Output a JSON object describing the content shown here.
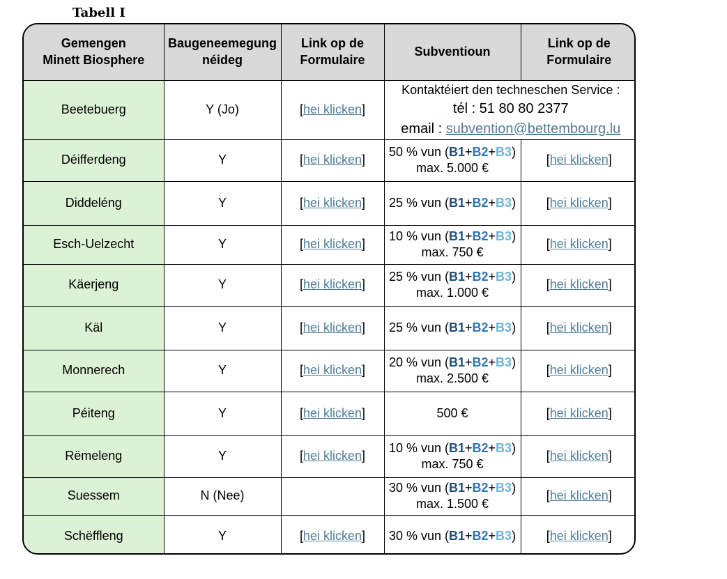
{
  "caption": "Tabell I",
  "headers": {
    "col1": [
      "Gemengen",
      "Minett Biosphere"
    ],
    "col2": [
      "Baugeneemegung",
      "néideg"
    ],
    "col3": [
      "Link op de",
      "Formulaire"
    ],
    "col4": "Subventioun",
    "col5": [
      "Link op de",
      "Formulaire"
    ]
  },
  "link_text": "hei klicken",
  "formula": {
    "b1": "B1",
    "b2": "B2",
    "b3": "B3",
    "plus": "+"
  },
  "colors": {
    "header_bg": "#d9d9d9",
    "commune_bg": "#dcf2d4",
    "link": "#4f7e9a",
    "b1": "#1f4e79",
    "b2": "#2e75b6",
    "b3": "#6cb4d8"
  },
  "contact": {
    "line1": "Kontaktéiert den techneschen Service :",
    "line2": "tél : 51 80 80 2377",
    "line3_prefix": "email : ",
    "email": "subvention@bettembourg.lu"
  },
  "rows": [
    {
      "commune": "Beetebuerg",
      "permit": "Y (Jo)",
      "link1": true,
      "subsidy_type": "contact",
      "link2": false
    },
    {
      "commune": "Déifferdeng",
      "permit": "Y",
      "link1": true,
      "subsidy_type": "formula",
      "pct": "50 % vun (",
      "max": "max. 5.000 €",
      "link2": true
    },
    {
      "commune": "Diddeléng",
      "permit": "Y",
      "link1": true,
      "subsidy_type": "formula",
      "pct": "25 % vun (",
      "max": "",
      "link2": true
    },
    {
      "commune": "Esch-Uelzecht",
      "permit": "Y",
      "link1": true,
      "subsidy_type": "formula",
      "pct": "10 % vun (",
      "max": "max. 750 €",
      "link2": true
    },
    {
      "commune": "Käerjeng",
      "permit": "Y",
      "link1": true,
      "subsidy_type": "formula",
      "pct": "25 % vun (",
      "max": "max. 1.000 €",
      "link2": true
    },
    {
      "commune": "Käl",
      "permit": "Y",
      "link1": true,
      "subsidy_type": "formula",
      "pct": "25 % vun (",
      "max": "",
      "link2": true
    },
    {
      "commune": "Monnerech",
      "permit": "Y",
      "link1": true,
      "subsidy_type": "formula",
      "pct": "20 % vun (",
      "max": "max. 2.500 €",
      "link2": true
    },
    {
      "commune": "Péiteng",
      "permit": "Y",
      "link1": true,
      "subsidy_type": "plain",
      "text": "500 €",
      "link2": true
    },
    {
      "commune": "Rëmeleng",
      "permit": "Y",
      "link1": true,
      "subsidy_type": "formula",
      "pct": "10 % vun (",
      "max": "max. 750 €",
      "link2": true
    },
    {
      "commune": "Suessem",
      "permit": "N (Nee)",
      "link1": false,
      "subsidy_type": "formula",
      "pct": "30 % vun (",
      "max": "max. 1.500 €",
      "link2": true
    },
    {
      "commune": "Schëffleng",
      "permit": "Y",
      "link1": true,
      "subsidy_type": "formula",
      "pct": "30 % vun (",
      "max": "",
      "link2": true
    }
  ]
}
